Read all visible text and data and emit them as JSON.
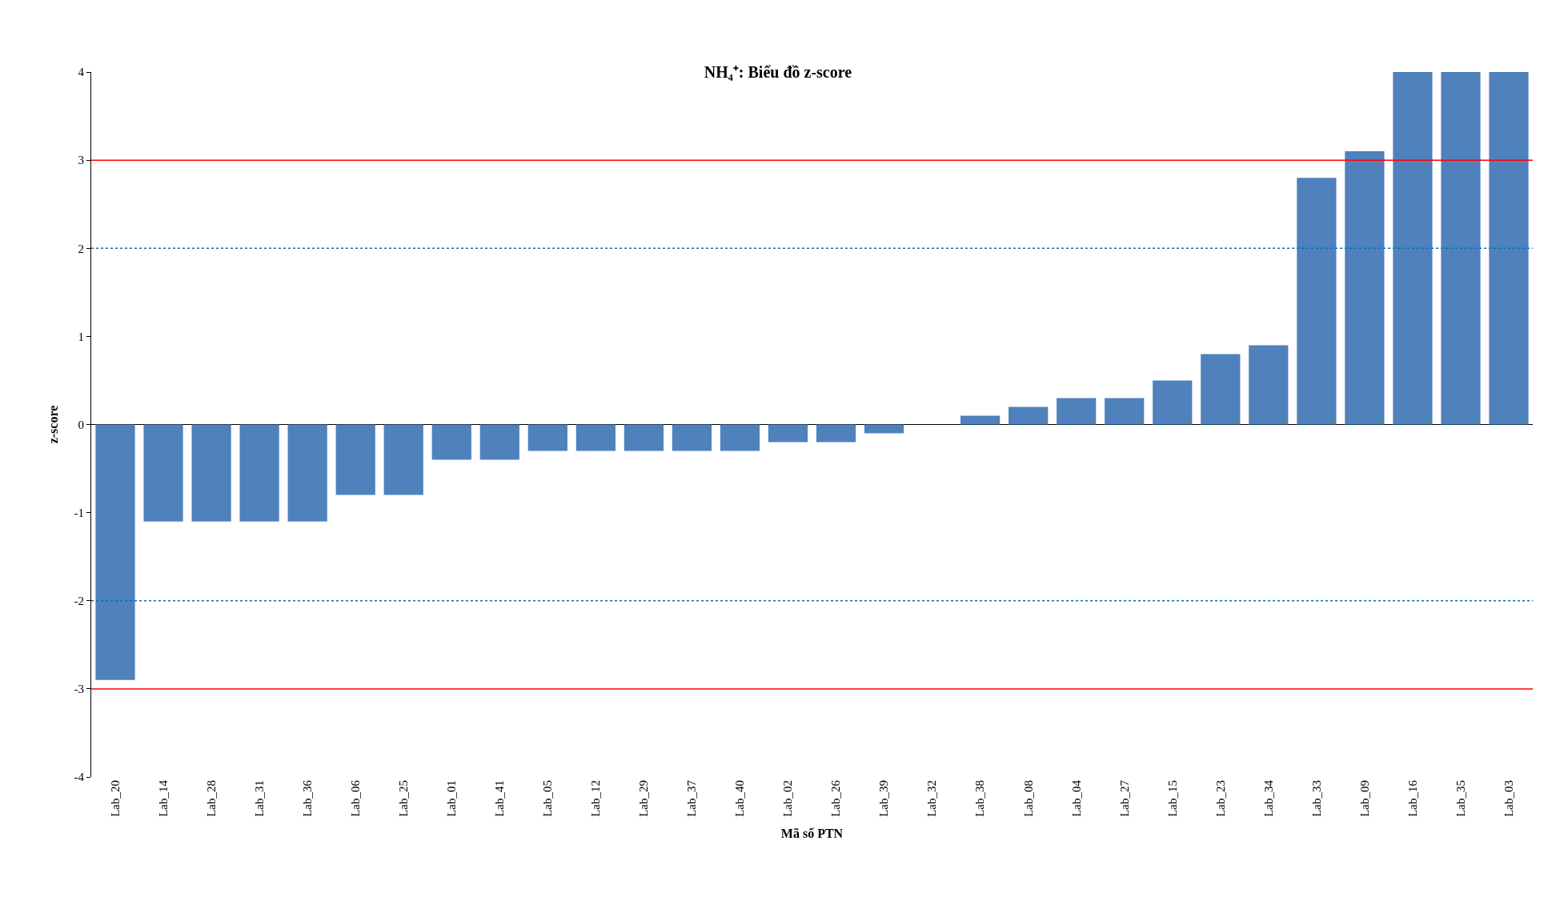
{
  "chart_data": {
    "type": "bar",
    "title": "NH₄⁺: Biểu đồ z-score",
    "xlabel": "Mã số PTN",
    "ylabel": "z-score",
    "categories": [
      "Lab_20",
      "Lab_14",
      "Lab_28",
      "Lab_31",
      "Lab_36",
      "Lab_06",
      "Lab_25",
      "Lab_01",
      "Lab_41",
      "Lab_05",
      "Lab_12",
      "Lab_29",
      "Lab_37",
      "Lab_40",
      "Lab_02",
      "Lab_26",
      "Lab_39",
      "Lab_32",
      "Lab_38",
      "Lab_08",
      "Lab_04",
      "Lab_27",
      "Lab_15",
      "Lab_23",
      "Lab_34",
      "Lab_33",
      "Lab_09",
      "Lab_16",
      "Lab_35",
      "Lab_03"
    ],
    "values": [
      -2.9,
      -1.1,
      -1.1,
      -1.1,
      -1.1,
      -0.8,
      -0.8,
      -0.4,
      -0.4,
      -0.3,
      -0.3,
      -0.3,
      -0.3,
      -0.3,
      -0.2,
      -0.2,
      -0.1,
      0,
      0.1,
      0.2,
      0.3,
      0.3,
      0.5,
      0.8,
      0.9,
      2.8,
      3.1,
      4,
      4,
      4
    ],
    "color": "#4f81bd",
    "ylim": [
      -4,
      4
    ],
    "yticks": [
      -4,
      -3,
      -2,
      -1,
      0,
      1,
      2,
      3,
      4
    ],
    "ref_lines": [
      {
        "axis": "y",
        "value": 3,
        "color": "#ff0000",
        "line_style": "solid"
      },
      {
        "axis": "y",
        "value": -3,
        "color": "#ff0000",
        "line_style": "solid"
      },
      {
        "axis": "y",
        "value": 2,
        "color": "#0070c0",
        "line_style": "dotted"
      },
      {
        "axis": "y",
        "value": -2,
        "color": "#0070c0",
        "line_style": "dotted"
      }
    ]
  }
}
